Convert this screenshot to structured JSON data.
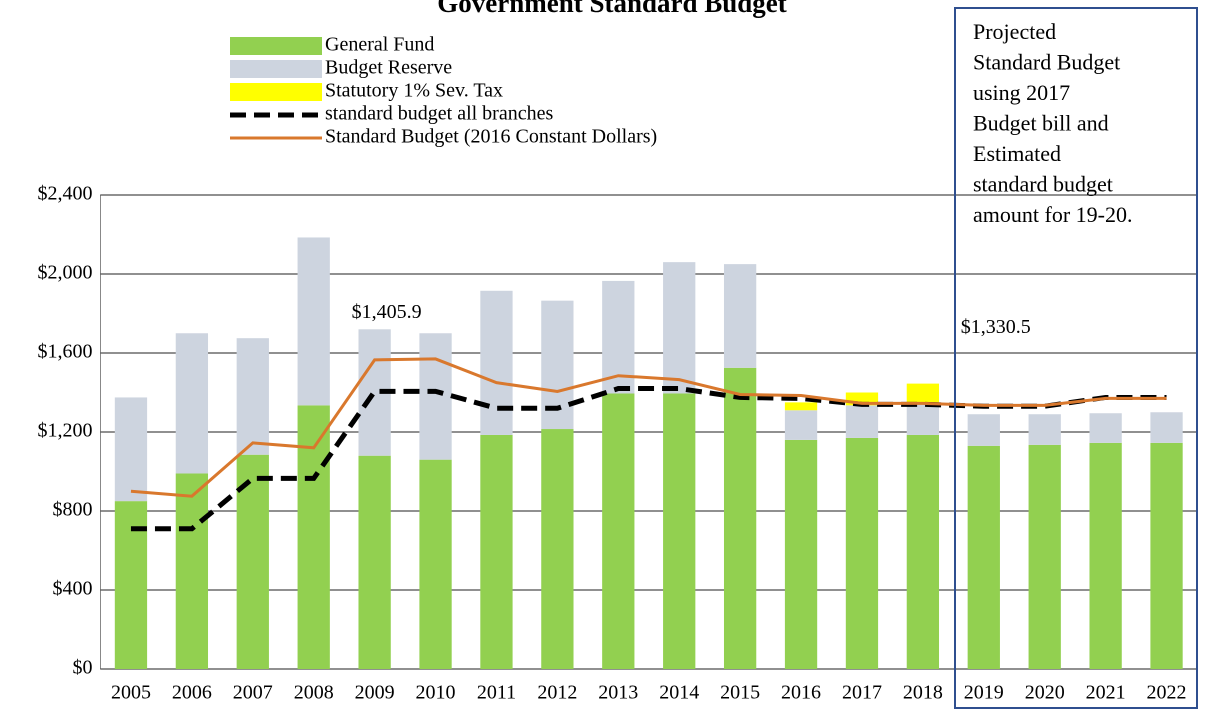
{
  "chart_data": {
    "type": "bar",
    "title": "Government Standard Budget",
    "categories": [
      "2005",
      "2006",
      "2007",
      "2008",
      "2009",
      "2010",
      "2011",
      "2012",
      "2013",
      "2014",
      "2015",
      "2016",
      "2017",
      "2018",
      "2019",
      "2020",
      "2021",
      "2022"
    ],
    "series": [
      {
        "name": "General Fund",
        "type": "bar",
        "color": "#92d050",
        "values": [
          850,
          990,
          1085,
          1335,
          1080,
          1060,
          1185,
          1215,
          1395,
          1395,
          1525,
          1160,
          1170,
          1185,
          1130,
          1135,
          1145,
          1145
        ]
      },
      {
        "name": "Budget Reserve",
        "type": "bar",
        "color": "#cdd4df",
        "values": [
          525,
          710,
          590,
          850,
          640,
          640,
          730,
          650,
          570,
          665,
          525,
          150,
          165,
          165,
          160,
          155,
          150,
          155
        ]
      },
      {
        "name": "Statutory 1% Sev. Tax",
        "type": "bar",
        "color": "#ffff00",
        "values": [
          null,
          null,
          null,
          null,
          null,
          null,
          null,
          null,
          null,
          null,
          null,
          40,
          65,
          95,
          null,
          null,
          null,
          null
        ]
      },
      {
        "name": "standard budget all branches",
        "type": "line",
        "dashed": true,
        "color": "#000000",
        "values": [
          710,
          710,
          965,
          965,
          1405.9,
          1405.9,
          1320,
          1320,
          1420,
          1420,
          1375,
          1370,
          1340,
          1340,
          1330.5,
          1330.5,
          1375,
          1375
        ],
        "value_labels": [
          null,
          null,
          null,
          null,
          "$1,405.9",
          null,
          null,
          null,
          null,
          null,
          null,
          null,
          null,
          null,
          "$1,330.5",
          null,
          null,
          null
        ]
      },
      {
        "name": "Standard Budget (2016 Constant Dollars)",
        "type": "line",
        "dashed": false,
        "color": "#d9782d",
        "values": [
          900,
          875,
          1145,
          1120,
          1565,
          1570,
          1450,
          1405,
          1485,
          1465,
          1390,
          1385,
          1345,
          1345,
          1335,
          1335,
          1370,
          1370
        ]
      }
    ],
    "ylim": [
      0,
      2400
    ],
    "yticks": [
      {
        "value": 0,
        "label": "$0"
      },
      {
        "value": 400,
        "label": "$400"
      },
      {
        "value": 800,
        "label": "$800"
      },
      {
        "value": 1200,
        "label": "$1,200"
      },
      {
        "value": 1600,
        "label": "$1,600"
      },
      {
        "value": 2000,
        "label": "$2,000"
      },
      {
        "value": 2400,
        "label": "$2,400"
      }
    ],
    "grid": true,
    "annotation": {
      "color": "#ff0000",
      "box_color": "#2f4f8f",
      "lines": [
        "Projected",
        "Standard Budget",
        "using 2017",
        "Budget bill and",
        "Estimated",
        "standard budget",
        "amount for 19-20."
      ]
    }
  }
}
